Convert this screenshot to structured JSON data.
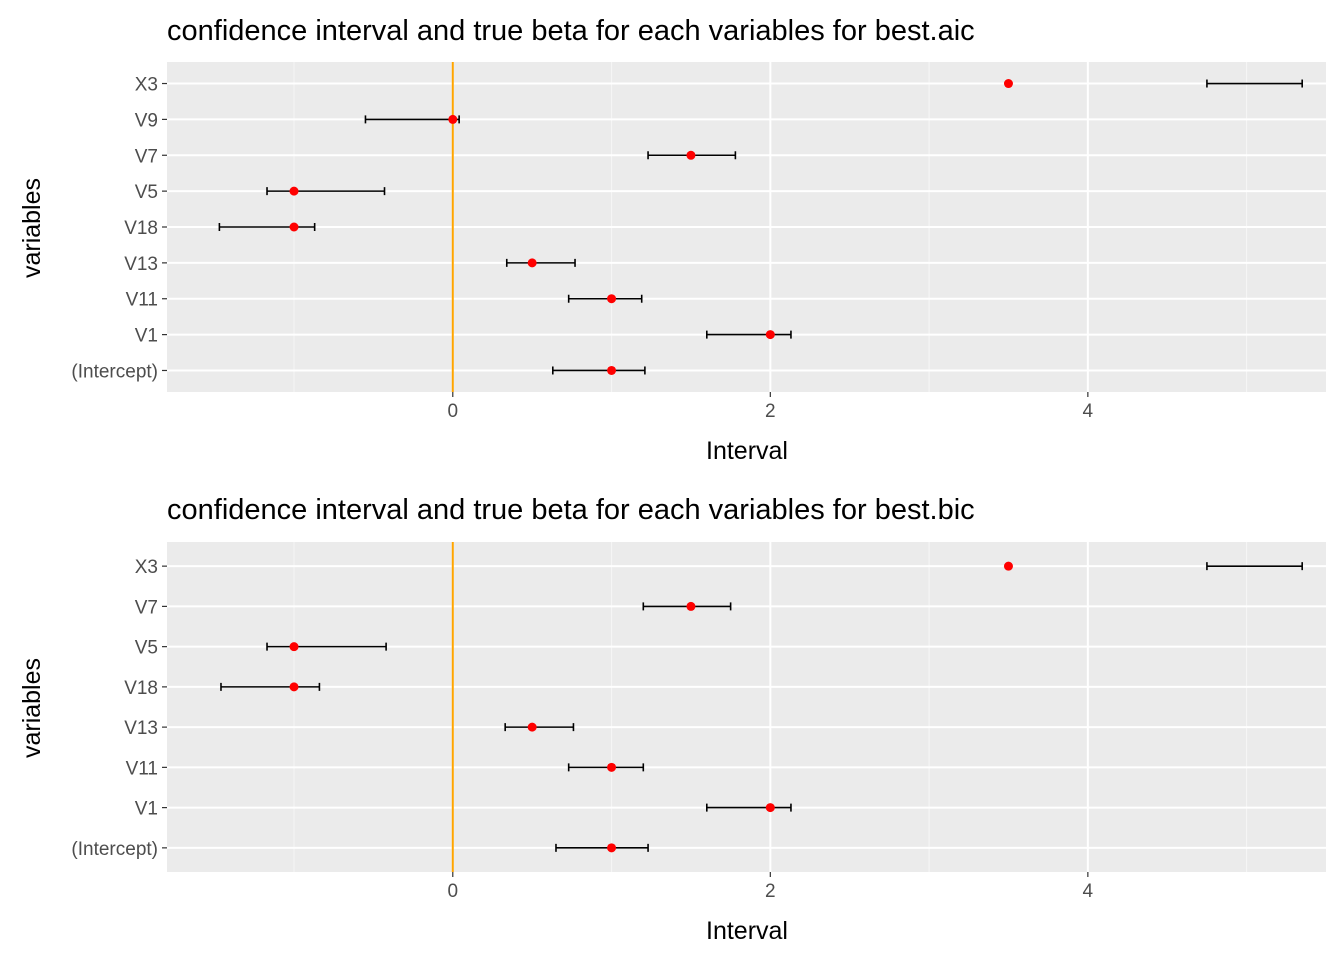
{
  "chart_data": [
    {
      "type": "errorbar",
      "title": "confidence interval and true beta for each variables for best.aic",
      "xlabel": "Interval",
      "ylabel": "variables",
      "xlim": [
        -1.8,
        5.5
      ],
      "x_ticks": [
        0,
        2,
        4
      ],
      "grid": true,
      "reference_line": {
        "x": 0,
        "color": "#ffa500"
      },
      "point_color": "#ff0000",
      "categories": [
        "X3",
        "V9",
        "V7",
        "V5",
        "V18",
        "V13",
        "V11",
        "V1",
        "(Intercept)"
      ],
      "ci_lower": [
        4.75,
        -0.55,
        1.23,
        -1.17,
        -1.47,
        0.34,
        0.73,
        1.6,
        0.63
      ],
      "ci_upper": [
        5.35,
        0.04,
        1.78,
        -0.43,
        -0.87,
        0.77,
        1.19,
        2.13,
        1.21
      ],
      "true_beta": [
        3.5,
        0,
        1.5,
        -1,
        -1,
        0.5,
        1,
        2,
        1
      ]
    },
    {
      "type": "errorbar",
      "title": "confidence interval and true beta for each variables for best.bic",
      "xlabel": "Interval",
      "ylabel": "variables",
      "xlim": [
        -1.8,
        5.5
      ],
      "x_ticks": [
        0,
        2,
        4
      ],
      "grid": true,
      "reference_line": {
        "x": 0,
        "color": "#ffa500"
      },
      "point_color": "#ff0000",
      "categories": [
        "X3",
        "V7",
        "V5",
        "V18",
        "V13",
        "V11",
        "V1",
        "(Intercept)"
      ],
      "ci_lower": [
        4.75,
        1.2,
        -1.17,
        -1.46,
        0.33,
        0.73,
        1.6,
        0.65
      ],
      "ci_upper": [
        5.35,
        1.75,
        -0.42,
        -0.84,
        0.76,
        1.2,
        2.13,
        1.23
      ],
      "true_beta": [
        3.5,
        1.5,
        -1,
        -1,
        0.5,
        1,
        2,
        1
      ]
    }
  ]
}
